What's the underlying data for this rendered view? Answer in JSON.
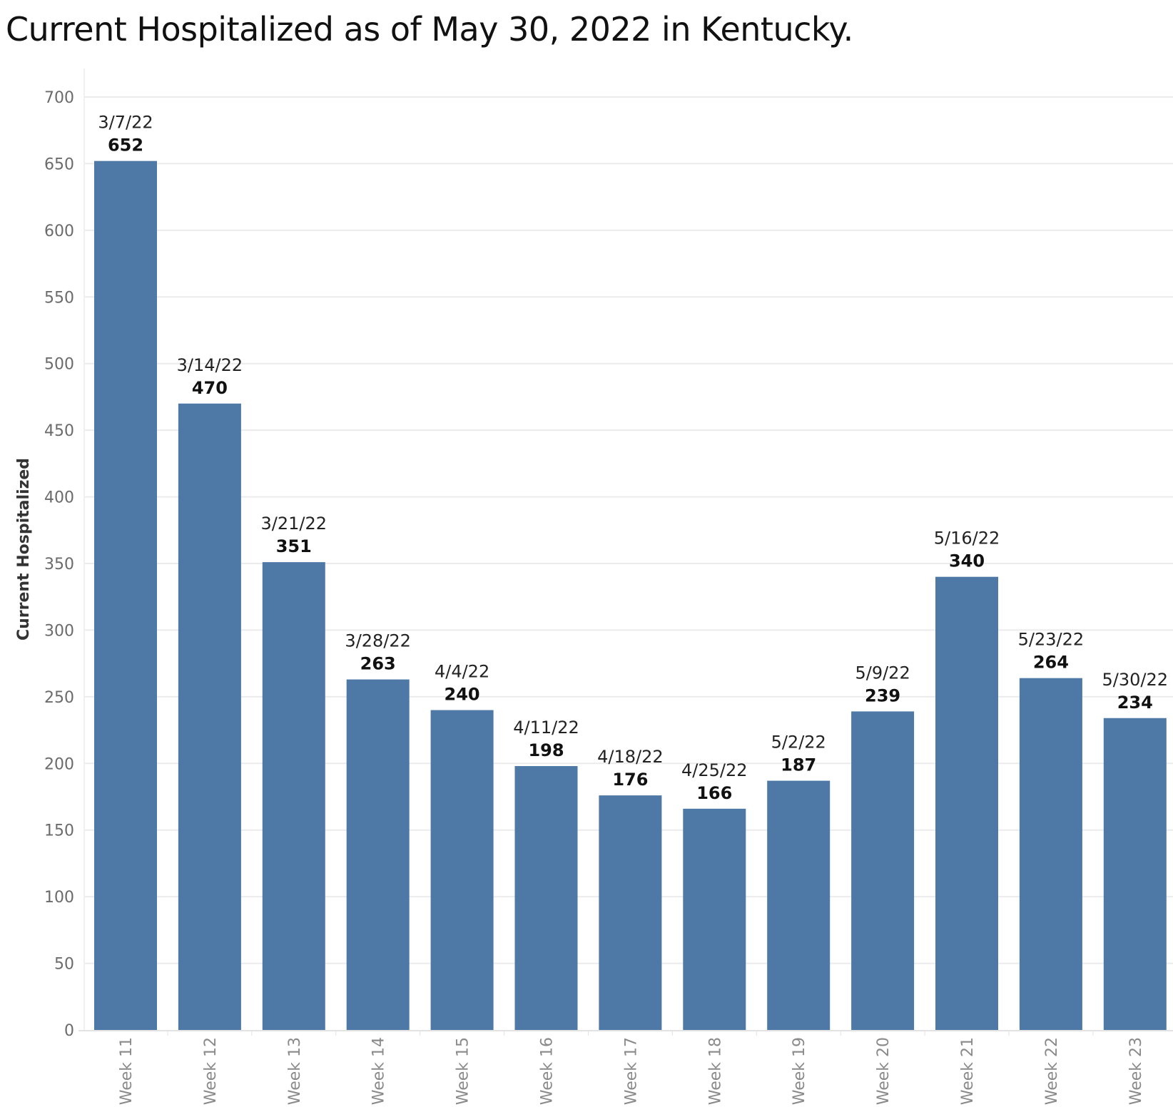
{
  "chart_data": {
    "type": "bar",
    "title": "Current Hospitalized as of May 30, 2022 in Kentucky.",
    "xlabel": "",
    "ylabel": "Current Hospitalized",
    "ylim": [
      0,
      700
    ],
    "yticks": [
      0,
      50,
      100,
      150,
      200,
      250,
      300,
      350,
      400,
      450,
      500,
      550,
      600,
      650,
      700
    ],
    "grid": true,
    "categories": [
      "Week 11",
      "Week 12",
      "Week 13",
      "Week 14",
      "Week 15",
      "Week 16",
      "Week 17",
      "Week 18",
      "Week 19",
      "Week 20",
      "Week 21",
      "Week 22",
      "Week 23"
    ],
    "dates": [
      "3/7/22",
      "3/14/22",
      "3/21/22",
      "3/28/22",
      "4/4/22",
      "4/11/22",
      "4/18/22",
      "4/25/22",
      "5/2/22",
      "5/9/22",
      "5/16/22",
      "5/23/22",
      "5/30/22"
    ],
    "values": [
      652,
      470,
      351,
      263,
      240,
      198,
      176,
      166,
      187,
      239,
      340,
      264,
      234
    ],
    "bar_color": "#4e79a7",
    "gridline_color": "#ebebeb"
  }
}
